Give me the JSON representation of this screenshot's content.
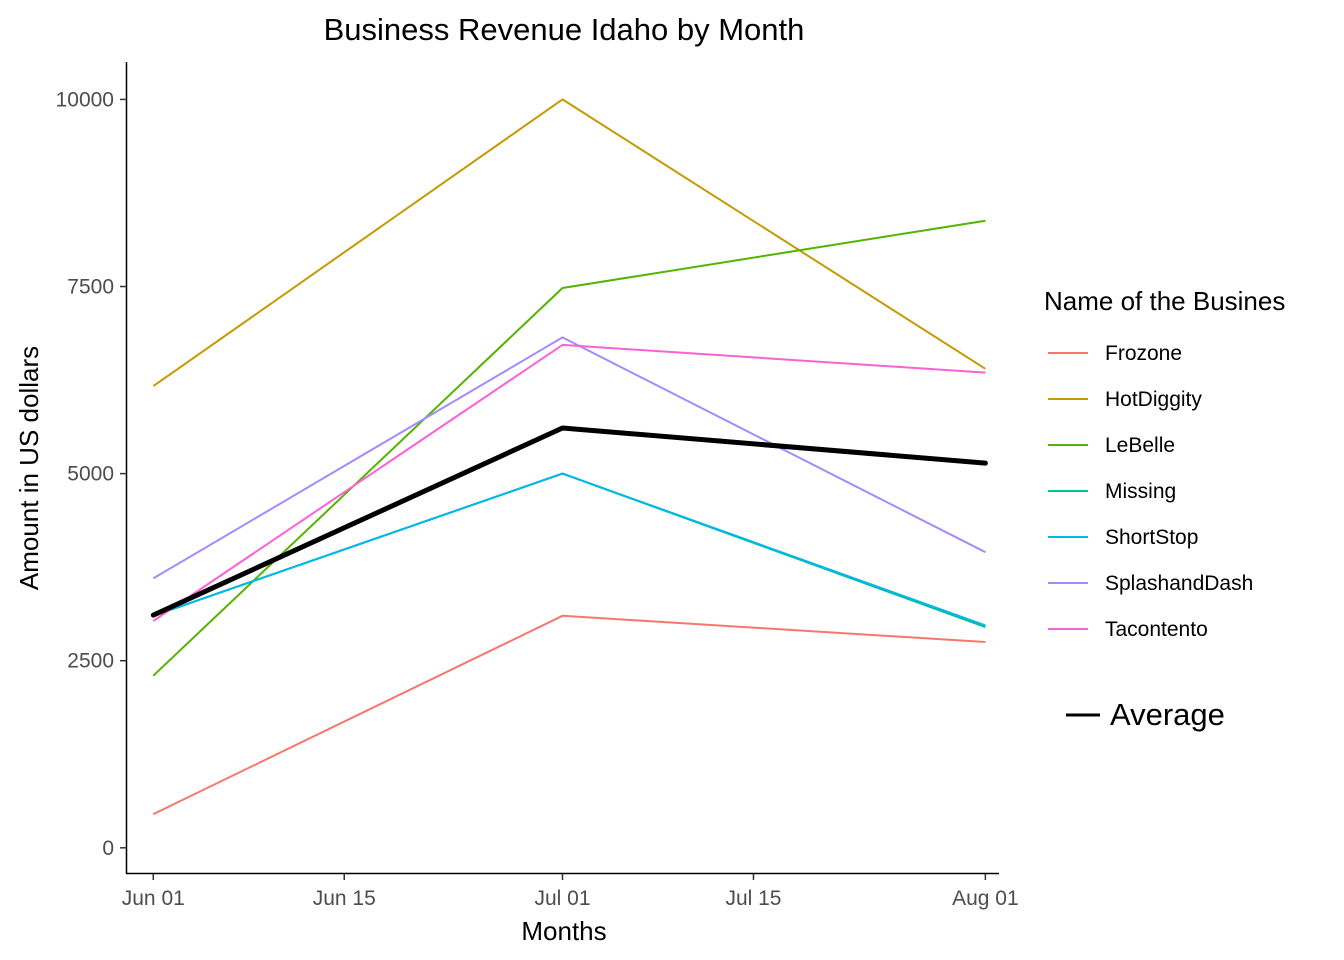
{
  "chart_data": {
    "type": "line",
    "title": "Business Revenue Idaho by Month",
    "xlabel": "Months",
    "ylabel": "Amount in US dollars",
    "x": [
      "2023-06-01",
      "2023-07-01",
      "2023-08-01"
    ],
    "x_ticks": [
      {
        "date": "2023-06-01",
        "label": "Jun 01"
      },
      {
        "date": "2023-06-15",
        "label": "Jun 15"
      },
      {
        "date": "2023-07-01",
        "label": "Jul 01"
      },
      {
        "date": "2023-07-15",
        "label": "Jul 15"
      },
      {
        "date": "2023-08-01",
        "label": "Aug 01"
      }
    ],
    "xlim": [
      "2023-05-30",
      "2023-08-02"
    ],
    "y_ticks": [
      0,
      2500,
      5000,
      7500,
      10000
    ],
    "ylim": [
      -350,
      10500
    ],
    "grid": false,
    "legend_position": "right",
    "legend_title": "Name of the Busines",
    "series": [
      {
        "name": "Frozone",
        "color": "#F8766D",
        "values": [
          450,
          3100,
          2750
        ]
      },
      {
        "name": "HotDiggity",
        "color": "#C49A00",
        "values": [
          6170,
          10000,
          6400
        ]
      },
      {
        "name": "LeBelle",
        "color": "#53B400",
        "values": [
          2300,
          7480,
          8380
        ]
      },
      {
        "name": "Missing",
        "color": "#00C094",
        "values": [
          3100,
          5000,
          2950
        ]
      },
      {
        "name": "ShortStop",
        "color": "#00B6EB",
        "values": [
          3100,
          5000,
          2970
        ]
      },
      {
        "name": "SplashandDash",
        "color": "#A58AFF",
        "values": [
          3600,
          6820,
          3950
        ]
      },
      {
        "name": "Tacontento",
        "color": "#FB61D7",
        "values": [
          3030,
          6720,
          6350
        ]
      }
    ],
    "average": {
      "name": "Average",
      "color": "#000000",
      "values": [
        3110,
        5610,
        5140
      ]
    }
  }
}
